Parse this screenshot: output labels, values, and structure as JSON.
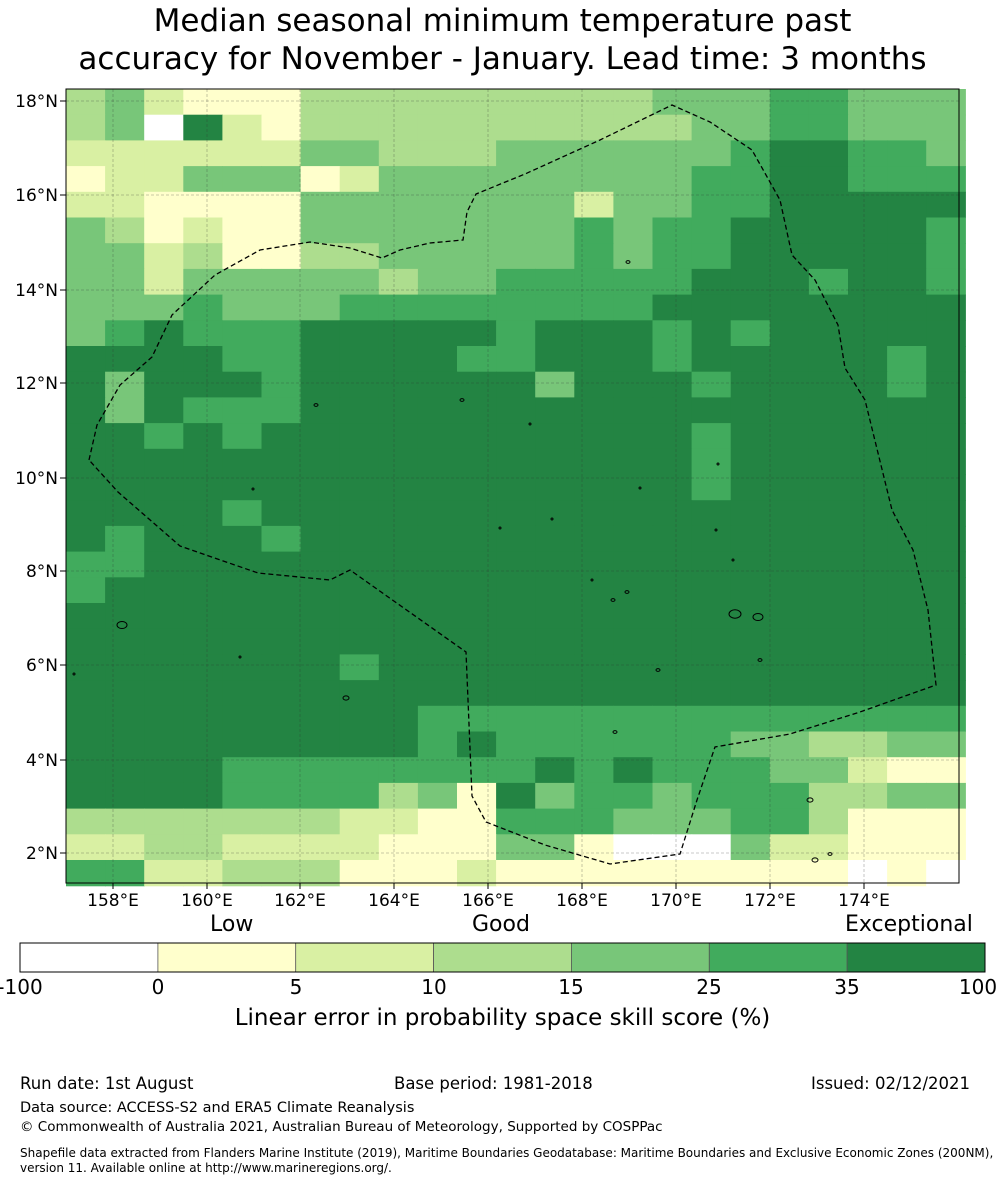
{
  "title": {
    "line1": "Median seasonal minimum temperature past",
    "line2": "accuracy for November - January. Lead time: 3 months"
  },
  "map": {
    "lon_labels": [
      "158°E",
      "160°E",
      "162°E",
      "164°E",
      "166°E",
      "168°E",
      "170°E",
      "172°E",
      "174°E"
    ],
    "lat_labels": [
      "18°N",
      "16°N",
      "14°N",
      "12°N",
      "10°N",
      "8°N",
      "6°N",
      "4°N",
      "2°N"
    ],
    "region_outline": "Exclusive economic zone boundary (dashed)"
  },
  "colorbar": {
    "quality_labels": [
      "Low",
      "Good",
      "Exceptional"
    ],
    "ticks": [
      "-100",
      "0",
      "5",
      "10",
      "15",
      "25",
      "35",
      "100"
    ],
    "colors": [
      "#ffffff",
      "#ffffcc",
      "#d9f0a3",
      "#addd8e",
      "#78c679",
      "#41ab5d",
      "#238443"
    ],
    "label": "Linear error in probability space skill score (%)"
  },
  "footer": {
    "run_date": "Run date: 1st August",
    "base_period": "Base period: 1981-2018",
    "issued": "Issued: 02/12/2021",
    "data_source": "Data source: ACCESS-S2 and ERA5 Climate Reanalysis",
    "copyright": "© Commonwealth of Australia 2021, Australian Bureau of Meteorology, Supported by COSPPac",
    "shapefile_line1": "Shapefile data extracted from Flanders Marine Institute (2019), Maritime Boundaries Geodatabase: Maritime Boundaries and Exclusive Economic Zones (200NM),",
    "shapefile_line2": "version 11. Available online at http://www.marineregions.org/."
  }
}
